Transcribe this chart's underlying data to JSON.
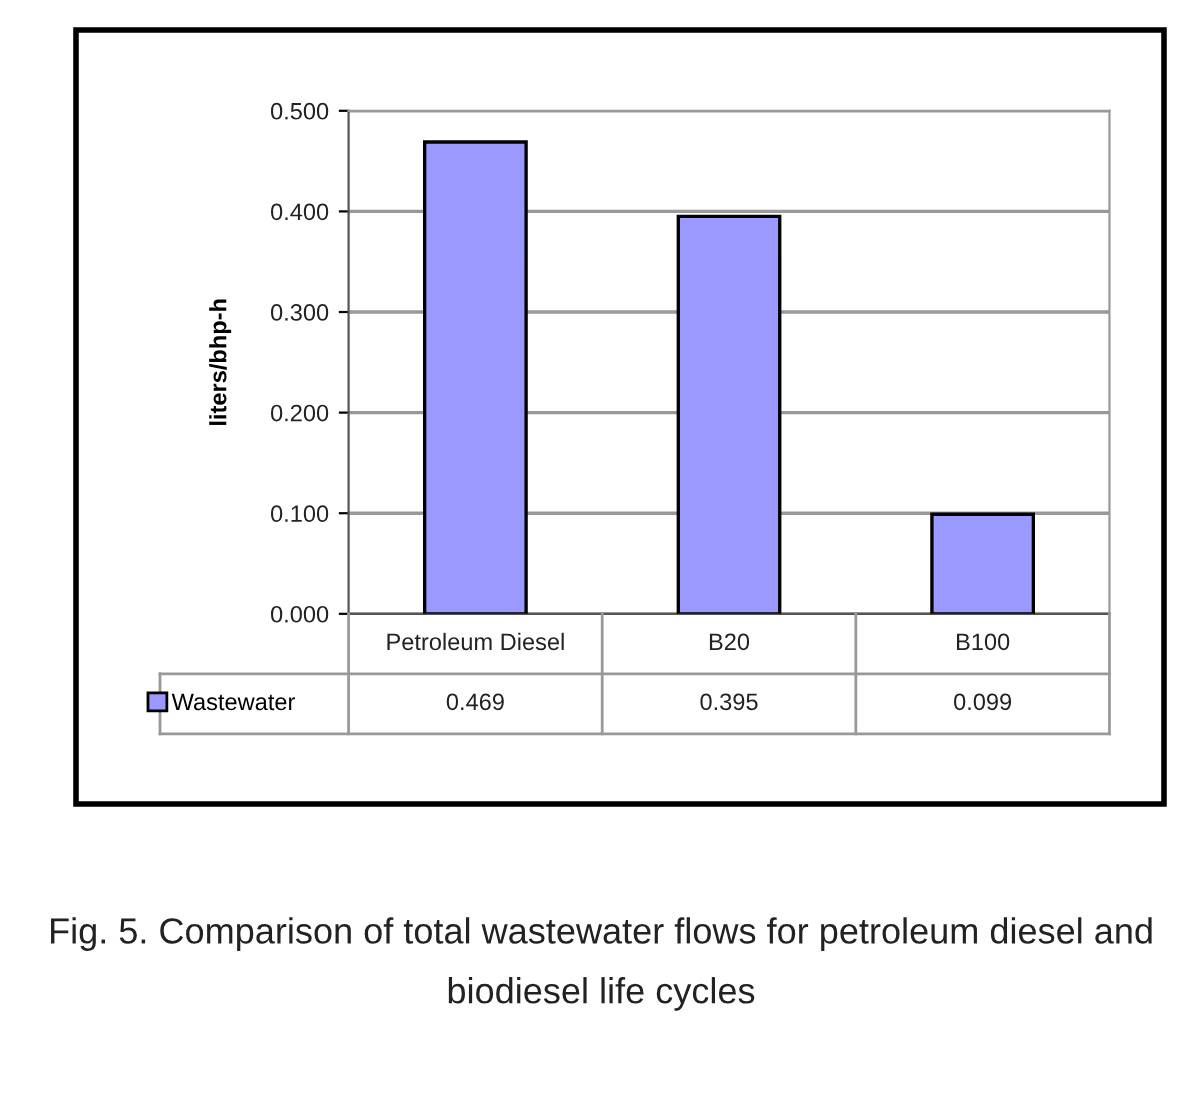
{
  "chart_data": {
    "type": "bar",
    "categories": [
      "Petroleum Diesel",
      "B20",
      "B100"
    ],
    "series": [
      {
        "name": "Wastewater",
        "color": "#9999ff",
        "values": [
          0.469,
          0.395,
          0.099
        ]
      }
    ],
    "ylabel": "liters/bhp-h",
    "ylim": [
      0,
      0.5
    ],
    "yticks": [
      {
        "value": 0,
        "label": "0.000"
      },
      {
        "value": 0.1,
        "label": "0.100"
      },
      {
        "value": 0.2,
        "label": "0.200"
      },
      {
        "value": 0.3,
        "label": "0.300"
      },
      {
        "value": 0.4,
        "label": "0.400"
      },
      {
        "value": 0.5,
        "label": "0.500"
      }
    ],
    "grid": "y",
    "legend": "bottom left",
    "data_labels": true,
    "annotations": [
      "Fig. 5. Comparison of total wastewater flows for petroleum diesel and biodiesel life cycles"
    ]
  }
}
